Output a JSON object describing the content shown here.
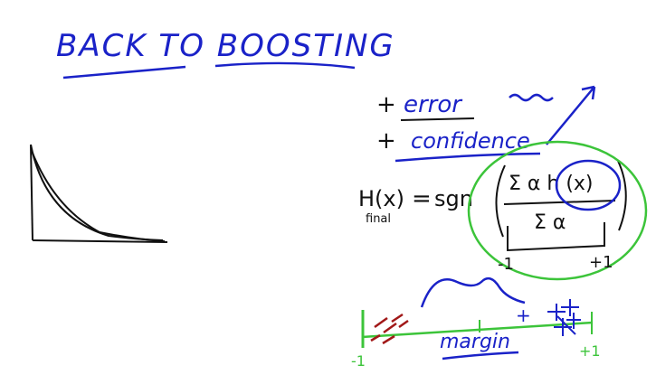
{
  "title": "BACK TO BOOSTING",
  "labels": {
    "error": "error",
    "confidence": "confidence",
    "plus": "+",
    "hypothesis_lhs_main": "H(x)",
    "hypothesis_lhs_sub": "final",
    "equals": "=",
    "sgn": "sgn",
    "numerator": "Σ α h (x)",
    "denominator": "Σ α",
    "bracket_left": "-1",
    "bracket_right": "+1",
    "margin": "margin",
    "axis_left": "-1",
    "axis_right": "+1",
    "axis_plus": "+"
  },
  "colors": {
    "blue_ink": "#1a22c8",
    "black_ink": "#111111",
    "green_ink": "#3cc43a",
    "red_ink": "#a11818"
  }
}
